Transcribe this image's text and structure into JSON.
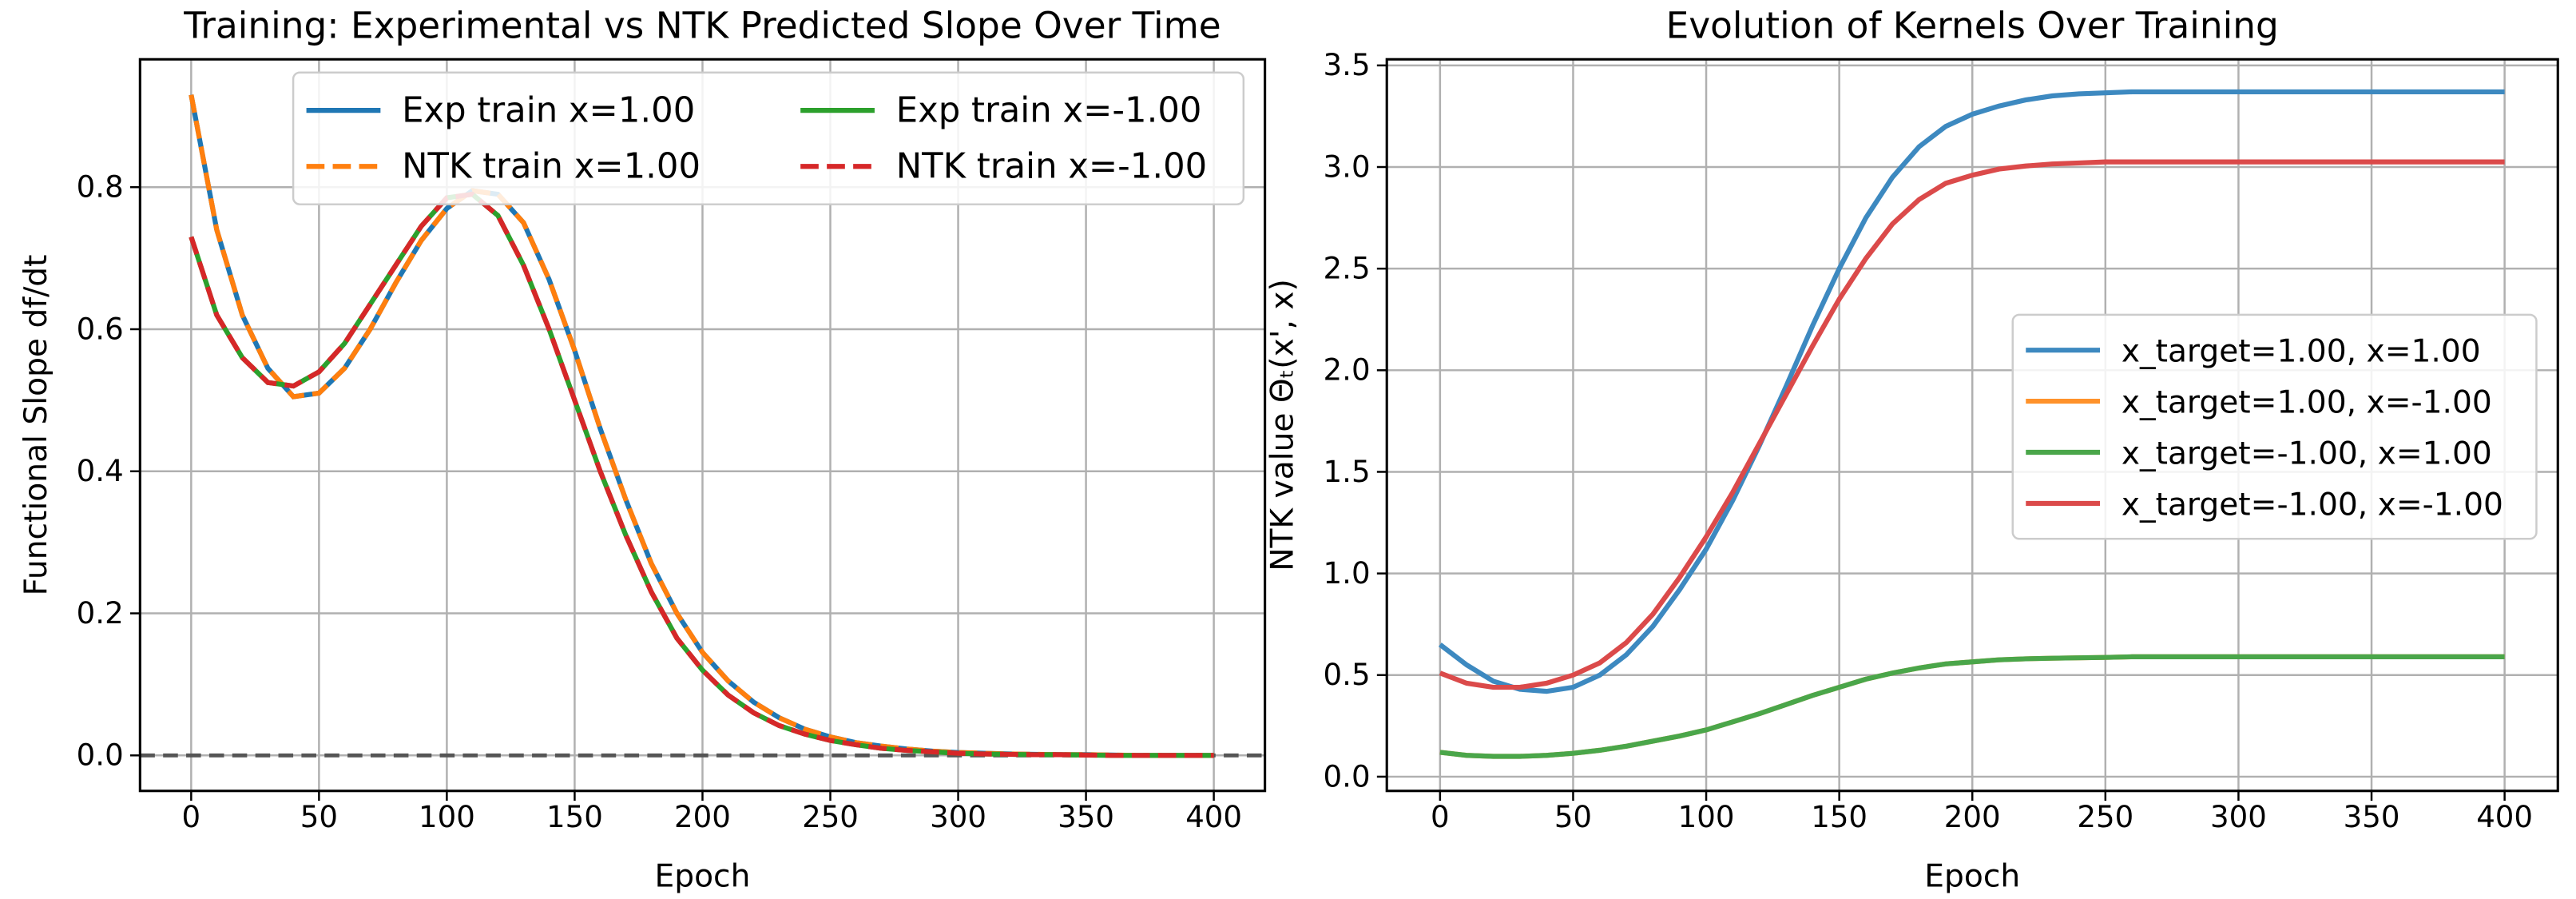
{
  "chart_data": [
    {
      "type": "line",
      "title": "Training: Experimental vs NTK Predicted Slope Over Time",
      "xlabel": "Epoch",
      "ylabel": "Functional Slope df/dt",
      "x": [
        0,
        10,
        20,
        30,
        40,
        50,
        60,
        70,
        80,
        90,
        100,
        110,
        120,
        130,
        140,
        150,
        160,
        170,
        180,
        190,
        200,
        210,
        220,
        230,
        240,
        250,
        260,
        270,
        280,
        290,
        300,
        310,
        320,
        330,
        340,
        350,
        360,
        370,
        380,
        390,
        400
      ],
      "series": [
        {
          "name": "Exp train x=1.00",
          "color": "#1f77b4",
          "linestyle": "solid",
          "values": [
            0.93,
            0.74,
            0.62,
            0.545,
            0.505,
            0.51,
            0.545,
            0.6,
            0.665,
            0.725,
            0.77,
            0.795,
            0.79,
            0.75,
            0.67,
            0.57,
            0.46,
            0.36,
            0.27,
            0.2,
            0.145,
            0.105,
            0.075,
            0.053,
            0.037,
            0.026,
            0.018,
            0.013,
            0.009,
            0.006,
            0.004,
            0.003,
            0.002,
            0.0015,
            0.001,
            0.001,
            0.0005,
            0,
            0,
            0,
            0
          ]
        },
        {
          "name": "NTK train x=1.00",
          "color": "#ff7f0e",
          "linestyle": "dashed",
          "values": [
            0.93,
            0.74,
            0.62,
            0.545,
            0.505,
            0.51,
            0.545,
            0.6,
            0.665,
            0.725,
            0.77,
            0.795,
            0.79,
            0.75,
            0.67,
            0.57,
            0.46,
            0.36,
            0.27,
            0.2,
            0.145,
            0.105,
            0.075,
            0.053,
            0.037,
            0.026,
            0.018,
            0.013,
            0.009,
            0.006,
            0.004,
            0.003,
            0.002,
            0.0015,
            0.001,
            0.001,
            0.0005,
            0,
            0,
            0,
            0
          ]
        },
        {
          "name": "Exp train x=-1.00",
          "color": "#2ca02c",
          "linestyle": "solid",
          "values": [
            0.73,
            0.62,
            0.56,
            0.525,
            0.52,
            0.54,
            0.58,
            0.635,
            0.69,
            0.745,
            0.785,
            0.79,
            0.76,
            0.69,
            0.6,
            0.5,
            0.4,
            0.31,
            0.23,
            0.165,
            0.12,
            0.085,
            0.06,
            0.042,
            0.03,
            0.021,
            0.015,
            0.01,
            0.007,
            0.005,
            0.003,
            0.002,
            0.0015,
            0.001,
            0.001,
            0.0005,
            0,
            0,
            0,
            0,
            0
          ]
        },
        {
          "name": "NTK train x=-1.00",
          "color": "#d62728",
          "linestyle": "dashed",
          "values": [
            0.73,
            0.62,
            0.56,
            0.525,
            0.52,
            0.54,
            0.58,
            0.635,
            0.69,
            0.745,
            0.785,
            0.79,
            0.76,
            0.69,
            0.6,
            0.5,
            0.4,
            0.31,
            0.23,
            0.165,
            0.12,
            0.085,
            0.06,
            0.042,
            0.03,
            0.021,
            0.015,
            0.01,
            0.007,
            0.005,
            0.003,
            0.002,
            0.0015,
            0.001,
            0.001,
            0.0005,
            0,
            0,
            0,
            0,
            0
          ]
        }
      ],
      "xlim": [
        -20,
        420
      ],
      "ylim": [
        -0.05,
        0.98
      ],
      "xticks": [
        0,
        50,
        100,
        150,
        200,
        250,
        300,
        350,
        400
      ],
      "yticks": [
        {
          "value": 0,
          "label": "0.0"
        },
        {
          "value": 0.2,
          "label": "0.2"
        },
        {
          "value": 0.4,
          "label": "0.4"
        },
        {
          "value": 0.6,
          "label": "0.6"
        },
        {
          "value": 0.8,
          "label": "0.8"
        }
      ],
      "grid": true,
      "hline": 0,
      "legend": "upper right",
      "legend_ncol": 2
    },
    {
      "type": "line",
      "title": "Evolution of Kernels Over Training",
      "xlabel": "Epoch",
      "ylabel": "NTK value  Θₜ(x', x)",
      "x": [
        0,
        10,
        20,
        30,
        40,
        50,
        60,
        70,
        80,
        90,
        100,
        110,
        120,
        130,
        140,
        150,
        160,
        170,
        180,
        190,
        200,
        210,
        220,
        230,
        240,
        250,
        260,
        270,
        280,
        290,
        300,
        310,
        320,
        330,
        340,
        350,
        360,
        370,
        380,
        390,
        400
      ],
      "series": [
        {
          "name": "x_target=1.00, x=1.00",
          "color": "#3d89c0",
          "linestyle": "solid",
          "values": [
            0.65,
            0.55,
            0.47,
            0.43,
            0.42,
            0.44,
            0.5,
            0.6,
            0.74,
            0.92,
            1.12,
            1.36,
            1.63,
            1.92,
            2.22,
            2.5,
            2.75,
            2.95,
            3.1,
            3.2,
            3.26,
            3.3,
            3.33,
            3.35,
            3.36,
            3.365,
            3.37,
            3.37,
            3.37,
            3.37,
            3.37,
            3.37,
            3.37,
            3.37,
            3.37,
            3.37,
            3.37,
            3.37,
            3.37,
            3.37,
            3.37
          ]
        },
        {
          "name": "x_target=1.00, x=-1.00",
          "color": "#ff922b",
          "linestyle": "solid",
          "values": [
            0.12,
            0.105,
            0.1,
            0.1,
            0.105,
            0.115,
            0.13,
            0.15,
            0.175,
            0.2,
            0.23,
            0.27,
            0.31,
            0.355,
            0.4,
            0.44,
            0.48,
            0.51,
            0.535,
            0.555,
            0.565,
            0.575,
            0.58,
            0.583,
            0.585,
            0.587,
            0.59,
            0.59,
            0.59,
            0.59,
            0.59,
            0.59,
            0.59,
            0.59,
            0.59,
            0.59,
            0.59,
            0.59,
            0.59,
            0.59,
            0.59
          ]
        },
        {
          "name": "x_target=-1.00, x=1.00",
          "color": "#4aa64a",
          "linestyle": "solid",
          "values": [
            0.12,
            0.105,
            0.1,
            0.1,
            0.105,
            0.115,
            0.13,
            0.15,
            0.175,
            0.2,
            0.23,
            0.27,
            0.31,
            0.355,
            0.4,
            0.44,
            0.48,
            0.51,
            0.535,
            0.555,
            0.565,
            0.575,
            0.58,
            0.583,
            0.585,
            0.587,
            0.59,
            0.59,
            0.59,
            0.59,
            0.59,
            0.59,
            0.59,
            0.59,
            0.59,
            0.59,
            0.59,
            0.59,
            0.59,
            0.59,
            0.59
          ]
        },
        {
          "name": "x_target=-1.00, x=-1.00",
          "color": "#db4a4a",
          "linestyle": "solid",
          "values": [
            0.51,
            0.46,
            0.44,
            0.44,
            0.46,
            0.5,
            0.56,
            0.66,
            0.8,
            0.98,
            1.18,
            1.4,
            1.64,
            1.88,
            2.12,
            2.35,
            2.55,
            2.72,
            2.84,
            2.92,
            2.96,
            2.99,
            3.005,
            3.015,
            3.02,
            3.025,
            3.025,
            3.025,
            3.025,
            3.025,
            3.025,
            3.025,
            3.025,
            3.025,
            3.025,
            3.025,
            3.025,
            3.025,
            3.025,
            3.025,
            3.025
          ]
        }
      ],
      "xlim": [
        -20,
        420
      ],
      "ylim": [
        -0.07,
        3.53
      ],
      "xticks": [
        0,
        50,
        100,
        150,
        200,
        250,
        300,
        350,
        400
      ],
      "yticks": [
        {
          "value": 0,
          "label": "0.0"
        },
        {
          "value": 0.5,
          "label": "0.5"
        },
        {
          "value": 1,
          "label": "1.0"
        },
        {
          "value": 1.5,
          "label": "1.5"
        },
        {
          "value": 2,
          "label": "2.0"
        },
        {
          "value": 2.5,
          "label": "2.5"
        },
        {
          "value": 3,
          "label": "3.0"
        },
        {
          "value": 3.5,
          "label": "3.5"
        }
      ],
      "grid": true,
      "legend": "center right",
      "legend_ncol": 1
    }
  ]
}
